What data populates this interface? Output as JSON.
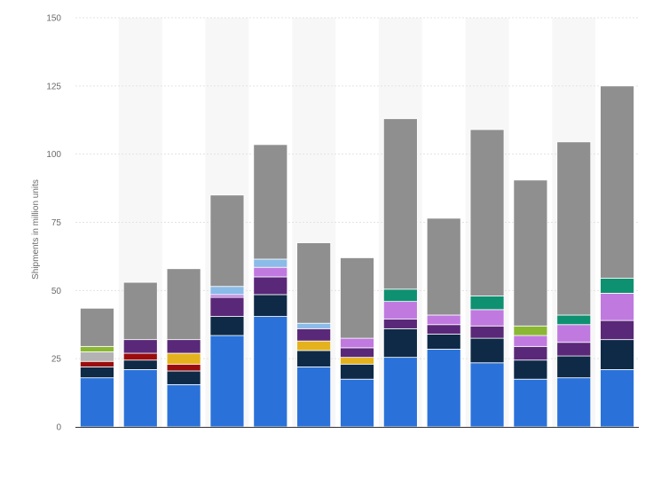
{
  "chart_data": {
    "type": "bar",
    "stacked": true,
    "title": "",
    "xlabel": "",
    "ylabel": "Shipments in million units",
    "ylim": [
      0,
      150
    ],
    "yticks": [
      0,
      25,
      50,
      75,
      100,
      125,
      150
    ],
    "grid": true,
    "legend": "none",
    "bar_count": 13,
    "series": [
      {
        "color": "#2a72d9",
        "values": [
          18,
          21,
          15.5,
          33.5,
          40.5,
          22,
          17.5,
          25.5,
          28.5,
          23.5,
          17.5,
          18,
          21
        ]
      },
      {
        "color": "#0e2a47",
        "values": [
          4,
          3.5,
          5,
          7,
          8,
          6,
          5.5,
          10.5,
          5.5,
          9,
          7,
          8,
          11
        ]
      },
      {
        "color": "#9b0d0d",
        "values": [
          2,
          2.5,
          2.5,
          0,
          0,
          0,
          0,
          0,
          0,
          0,
          0,
          0,
          0
        ]
      },
      {
        "color": "#e4b21e",
        "values": [
          0,
          0,
          4,
          0,
          0,
          3.5,
          2.5,
          0,
          0,
          0,
          0,
          0,
          0
        ]
      },
      {
        "color": "#5a2878",
        "values": [
          0,
          5,
          5,
          7,
          6.5,
          4.5,
          3.5,
          3.5,
          3.5,
          4.5,
          5,
          5,
          7
        ]
      },
      {
        "color": "#c07adf",
        "values": [
          0,
          0,
          0,
          1,
          3.5,
          0,
          3.5,
          6.5,
          3.5,
          6,
          4,
          6.5,
          10
        ]
      },
      {
        "color": "#8bbbe8",
        "values": [
          0,
          0,
          0,
          3,
          3,
          2,
          0,
          0,
          0,
          0,
          0,
          0,
          0
        ]
      },
      {
        "color": "#0e9170",
        "values": [
          0,
          0,
          0,
          0,
          0,
          0,
          0,
          4.5,
          0,
          5,
          0,
          3.5,
          5.5
        ]
      },
      {
        "color": "#b3b3b3",
        "values": [
          3.5,
          0,
          0,
          0,
          0,
          0,
          0,
          0,
          0,
          0,
          0,
          0,
          0
        ]
      },
      {
        "color": "#8ab833",
        "values": [
          2,
          0,
          0,
          0,
          0,
          0,
          0,
          0,
          0,
          0,
          3.5,
          0,
          0
        ]
      },
      {
        "color": "#8f8f8f",
        "values": [
          14,
          21,
          26,
          33.5,
          42,
          29.5,
          29.5,
          62.5,
          35.5,
          61,
          53.5,
          63.5,
          70.5
        ]
      }
    ]
  }
}
